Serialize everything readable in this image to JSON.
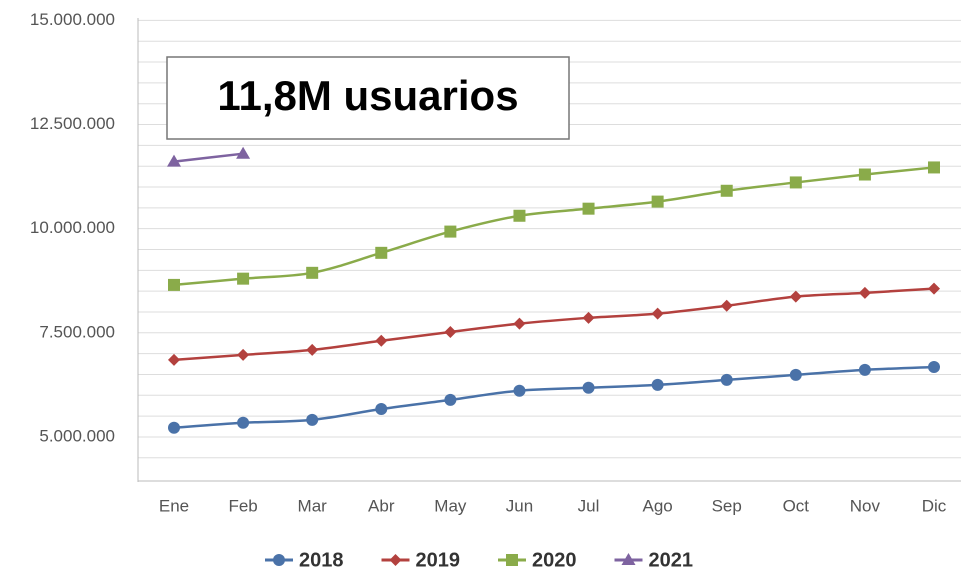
{
  "chart_data": {
    "type": "line",
    "annotation": "11,8M usuarios",
    "categories": [
      "Ene",
      "Feb",
      "Mar",
      "Abr",
      "May",
      "Jun",
      "Jul",
      "Ago",
      "Sep",
      "Oct",
      "Nov",
      "Dic"
    ],
    "series": [
      {
        "name": "2018",
        "color": "#4a72a8",
        "marker": "circle",
        "values": [
          5220000,
          5340000,
          5410000,
          5670000,
          5890000,
          6110000,
          6180000,
          6250000,
          6370000,
          6490000,
          6610000,
          6680000
        ]
      },
      {
        "name": "2019",
        "color": "#b3413e",
        "marker": "diamond",
        "values": [
          6850000,
          6970000,
          7090000,
          7310000,
          7520000,
          7720000,
          7860000,
          7960000,
          8150000,
          8370000,
          8460000,
          8560000
        ]
      },
      {
        "name": "2020",
        "color": "#8aab4a",
        "marker": "square",
        "values": [
          8650000,
          8800000,
          8940000,
          9420000,
          9930000,
          10310000,
          10480000,
          10650000,
          10910000,
          11110000,
          11300000,
          11470000
        ]
      },
      {
        "name": "2021",
        "color": "#7e63a0",
        "marker": "triangle",
        "values": [
          11610000,
          11800000,
          null,
          null,
          null,
          null,
          null,
          null,
          null,
          null,
          null,
          null
        ]
      }
    ],
    "ylim": [
      4000000,
      15000000
    ],
    "yticks": [
      {
        "value": 5000000,
        "label": "5.000.000"
      },
      {
        "value": 7500000,
        "label": "7.500.000"
      },
      {
        "value": 10000000,
        "label": "10.000.000"
      },
      {
        "value": 12500000,
        "label": "12.500.000"
      },
      {
        "value": 15000000,
        "label": "15.000.000"
      }
    ],
    "grid_lines": [
      4500000,
      5000000,
      5500000,
      6000000,
      6500000,
      7000000,
      7500000,
      8000000,
      8500000,
      9000000,
      9500000,
      10000000,
      10500000,
      11000000,
      11500000,
      12000000,
      12500000,
      13000000,
      13500000,
      14000000,
      14500000,
      15000000
    ],
    "smooth": true,
    "legend": "bottom"
  }
}
